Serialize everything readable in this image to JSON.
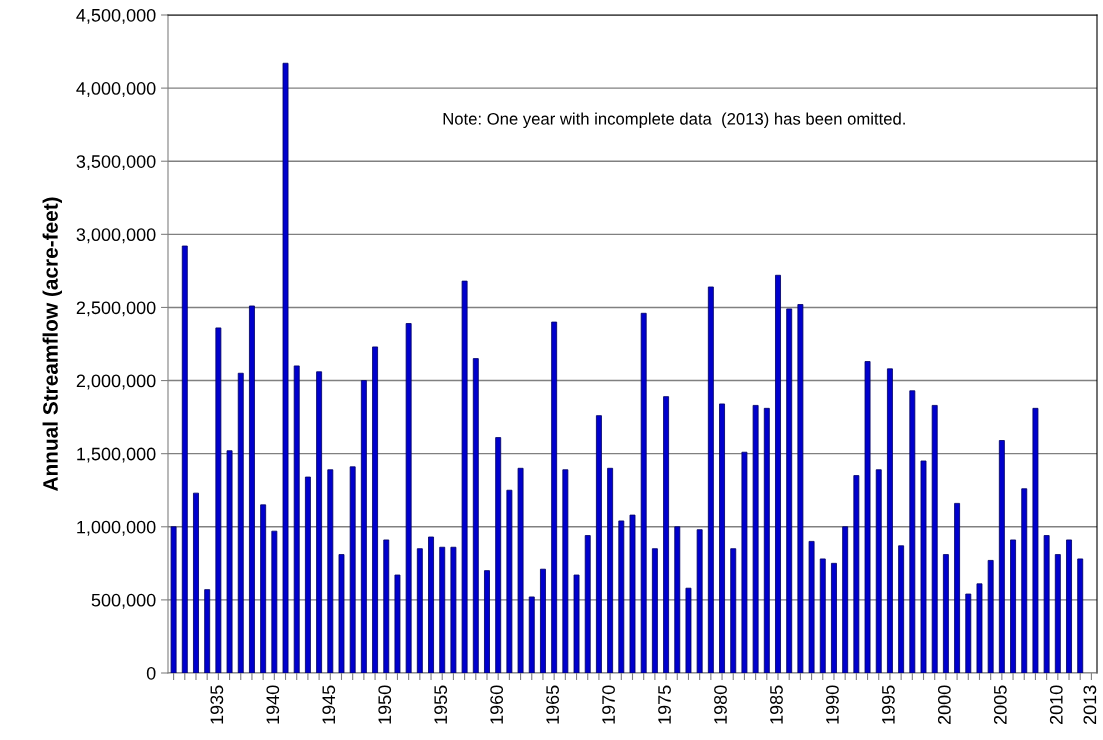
{
  "chart_data": {
    "type": "bar",
    "ylabel": "Annual Streamflow (acre-feet)",
    "categories": [
      null,
      null,
      null,
      null,
      "1935",
      null,
      null,
      null,
      null,
      "1940",
      null,
      null,
      null,
      null,
      "1945",
      null,
      null,
      null,
      null,
      "1950",
      null,
      null,
      null,
      null,
      "1955",
      null,
      null,
      null,
      null,
      "1960",
      null,
      null,
      null,
      null,
      "1965",
      null,
      null,
      null,
      null,
      "1970",
      null,
      null,
      null,
      null,
      "1975",
      null,
      null,
      null,
      null,
      "1980",
      null,
      null,
      null,
      null,
      "1985",
      null,
      null,
      null,
      null,
      "1990",
      null,
      null,
      null,
      null,
      "1995",
      null,
      null,
      null,
      null,
      "2000",
      null,
      null,
      null,
      null,
      "2005",
      null,
      null,
      null,
      null,
      "2010",
      null,
      null,
      "2013"
    ],
    "values": [
      1000000,
      2920000,
      1230000,
      570000,
      2360000,
      1520000,
      2050000,
      2510000,
      1150000,
      970000,
      4170000,
      2100000,
      1340000,
      2060000,
      1390000,
      810000,
      1410000,
      2000000,
      2230000,
      910000,
      670000,
      2390000,
      850000,
      930000,
      860000,
      860000,
      2680000,
      2150000,
      700000,
      1610000,
      1250000,
      1400000,
      520000,
      710000,
      2400000,
      1390000,
      670000,
      940000,
      1760000,
      1400000,
      1040000,
      1080000,
      2460000,
      850000,
      1890000,
      1000000,
      580000,
      980000,
      2640000,
      1840000,
      850000,
      1510000,
      1830000,
      1810000,
      2720000,
      2490000,
      2520000,
      900000,
      780000,
      750000,
      1000000,
      1350000,
      2130000,
      1390000,
      2080000,
      870000,
      1930000,
      1450000,
      1830000,
      810000,
      1160000,
      540000,
      610000,
      770000,
      1590000,
      910000,
      1260000,
      1810000,
      940000,
      810000,
      910000,
      780000,
      null
    ],
    "color": "#0000cc",
    "ylim": [
      0,
      4500000
    ],
    "yticks": [
      {
        "value": 0,
        "label": "0"
      },
      {
        "value": 500000,
        "label": "500,000"
      },
      {
        "value": 1000000,
        "label": "1,000,000"
      },
      {
        "value": 1500000,
        "label": "1,500,000"
      },
      {
        "value": 2000000,
        "label": "2,000,000"
      },
      {
        "value": 2500000,
        "label": "2,500,000"
      },
      {
        "value": 3000000,
        "label": "3,000,000"
      },
      {
        "value": 3500000,
        "label": "3,500,000"
      },
      {
        "value": 4000000,
        "label": "4,000,000"
      },
      {
        "value": 4500000,
        "label": "4,500,000"
      }
    ],
    "grid": "y",
    "annotations": [
      "Note: One year with incomplete data  (2013) has been omitted."
    ]
  }
}
